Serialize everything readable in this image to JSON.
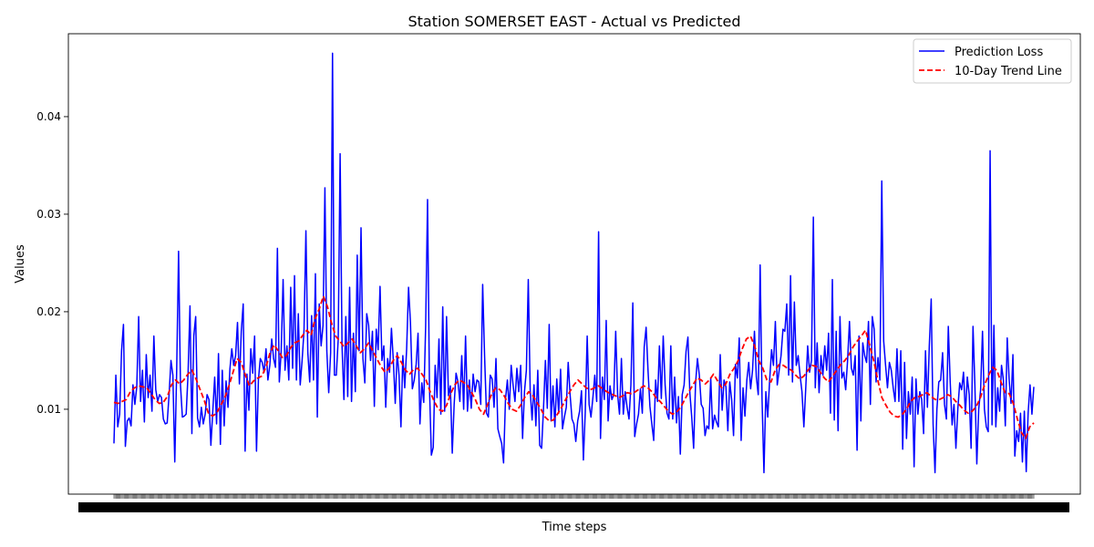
{
  "chart_data": {
    "type": "line",
    "title": "Station SOMERSET EAST - Actual vs Predicted",
    "xlabel": "Time steps",
    "ylabel": "Values",
    "ylim": [
      0.0013,
      0.0485
    ],
    "yticks": [
      "0.01",
      "0.02",
      "0.03",
      "0.04"
    ],
    "ytick_values": [
      0.01,
      0.02,
      0.03,
      0.04
    ],
    "xtick_count": 900,
    "xtick_note": "dense overlapping date tick labels (unreadable)",
    "grid": false,
    "legend_position": "top-right",
    "colors": {
      "loss": "#0000ff",
      "trend": "#ff0000"
    },
    "series": [
      {
        "name": "Prediction Loss",
        "style": "solid",
        "values": [
          0.0065,
          0.0135,
          0.0082,
          0.0095,
          0.016,
          0.0187,
          0.0062,
          0.0088,
          0.0091,
          0.0083,
          0.0125,
          0.0105,
          0.0123,
          0.0195,
          0.0108,
          0.014,
          0.0087,
          0.0156,
          0.0112,
          0.0135,
          0.0098,
          0.0175,
          0.012,
          0.0108,
          0.0115,
          0.0112,
          0.009,
          0.0085,
          0.0086,
          0.0115,
          0.015,
          0.0135,
          0.0046,
          0.014,
          0.0262,
          0.0125,
          0.0092,
          0.0093,
          0.0095,
          0.0137,
          0.0206,
          0.0075,
          0.0175,
          0.0195,
          0.0091,
          0.0082,
          0.0102,
          0.0085,
          0.0095,
          0.0115,
          0.011,
          0.0063,
          0.0098,
          0.0133,
          0.0085,
          0.0157,
          0.0064,
          0.014,
          0.0083,
          0.0129,
          0.0102,
          0.0141,
          0.0162,
          0.0145,
          0.0155,
          0.0189,
          0.0126,
          0.018,
          0.0208,
          0.0057,
          0.0136,
          0.0099,
          0.0162,
          0.0137,
          0.0175,
          0.0057,
          0.013,
          0.0152,
          0.0148,
          0.0138,
          0.0162,
          0.013,
          0.0145,
          0.0172,
          0.0152,
          0.0143,
          0.0265,
          0.0128,
          0.016,
          0.0233,
          0.014,
          0.0165,
          0.013,
          0.0225,
          0.0142,
          0.0237,
          0.013,
          0.0198,
          0.0125,
          0.015,
          0.0181,
          0.0283,
          0.0158,
          0.0128,
          0.0196,
          0.013,
          0.0239,
          0.0092,
          0.0208,
          0.0165,
          0.0186,
          0.0327,
          0.016,
          0.0117,
          0.0158,
          0.0465,
          0.0135,
          0.0135,
          0.0172,
          0.0362,
          0.0165,
          0.011,
          0.0195,
          0.0113,
          0.0225,
          0.0108,
          0.0178,
          0.0118,
          0.0258,
          0.016,
          0.0286,
          0.0152,
          0.0127,
          0.0198,
          0.0186,
          0.015,
          0.018,
          0.0103,
          0.0182,
          0.0161,
          0.0226,
          0.015,
          0.0165,
          0.0102,
          0.0152,
          0.0138,
          0.0183,
          0.015,
          0.0106,
          0.0158,
          0.0135,
          0.0082,
          0.0155,
          0.0122,
          0.0162,
          0.0225,
          0.0189,
          0.0121,
          0.013,
          0.0146,
          0.0178,
          0.0085,
          0.0127,
          0.0107,
          0.0185,
          0.0315,
          0.0124,
          0.0053,
          0.0061,
          0.0145,
          0.0112,
          0.0172,
          0.0095,
          0.0205,
          0.0098,
          0.0195,
          0.0114,
          0.0124,
          0.0055,
          0.0105,
          0.0137,
          0.0128,
          0.0108,
          0.0155,
          0.01,
          0.0175,
          0.0098,
          0.013,
          0.0101,
          0.0136,
          0.0118,
          0.013,
          0.0128,
          0.0105,
          0.0228,
          0.0155,
          0.0096,
          0.0092,
          0.0135,
          0.0131,
          0.0102,
          0.0152,
          0.008,
          0.0072,
          0.0065,
          0.0045,
          0.011,
          0.013,
          0.01,
          0.0145,
          0.0125,
          0.0108,
          0.0142,
          0.0118,
          0.0145,
          0.007,
          0.0118,
          0.014,
          0.0233,
          0.012,
          0.0089,
          0.0125,
          0.0083,
          0.014,
          0.0063,
          0.006,
          0.01,
          0.015,
          0.0101,
          0.0187,
          0.0088,
          0.0124,
          0.0082,
          0.0131,
          0.0096,
          0.0141,
          0.008,
          0.0092,
          0.0102,
          0.0148,
          0.0115,
          0.009,
          0.0085,
          0.0067,
          0.0088,
          0.0098,
          0.0119,
          0.0048,
          0.0098,
          0.0175,
          0.0105,
          0.0092,
          0.0112,
          0.0135,
          0.0108,
          0.0282,
          0.007,
          0.0133,
          0.011,
          0.0191,
          0.0088,
          0.0124,
          0.011,
          0.0115,
          0.018,
          0.0115,
          0.0095,
          0.0152,
          0.0095,
          0.0118,
          0.0102,
          0.009,
          0.0125,
          0.0209,
          0.0072,
          0.0085,
          0.0095,
          0.0121,
          0.0096,
          0.0164,
          0.0184,
          0.014,
          0.0103,
          0.0085,
          0.0068,
          0.013,
          0.0108,
          0.0165,
          0.0111,
          0.0175,
          0.0125,
          0.0096,
          0.009,
          0.0165,
          0.009,
          0.0133,
          0.0086,
          0.0113,
          0.0054,
          0.0115,
          0.0125,
          0.0159,
          0.0174,
          0.0117,
          0.0092,
          0.006,
          0.0126,
          0.0152,
          0.0135,
          0.0105,
          0.0101,
          0.0073,
          0.0083,
          0.008,
          0.0132,
          0.008,
          0.0094,
          0.0087,
          0.0082,
          0.0156,
          0.0099,
          0.013,
          0.0123,
          0.0078,
          0.0128,
          0.011,
          0.0073,
          0.0146,
          0.0132,
          0.0173,
          0.0068,
          0.0122,
          0.0093,
          0.013,
          0.0148,
          0.0121,
          0.014,
          0.018,
          0.0133,
          0.0115,
          0.0248,
          0.011,
          0.0035,
          0.0118,
          0.0092,
          0.013,
          0.0161,
          0.0145,
          0.019,
          0.0125,
          0.014,
          0.0155,
          0.0182,
          0.018,
          0.0208,
          0.0135,
          0.0237,
          0.0128,
          0.021,
          0.0145,
          0.0155,
          0.0135,
          0.0118,
          0.0082,
          0.0122,
          0.0165,
          0.0138,
          0.015,
          0.0297,
          0.0122,
          0.0168,
          0.0117,
          0.0155,
          0.0135,
          0.0165,
          0.014,
          0.0178,
          0.0096,
          0.0233,
          0.0089,
          0.018,
          0.0078,
          0.0195,
          0.0132,
          0.0138,
          0.012,
          0.015,
          0.019,
          0.0142,
          0.0135,
          0.0155,
          0.0058,
          0.0175,
          0.0088,
          0.0168,
          0.0155,
          0.0148,
          0.019,
          0.0105,
          0.0195,
          0.0182,
          0.0128,
          0.0153,
          0.013,
          0.0334,
          0.017,
          0.0145,
          0.0122,
          0.0148,
          0.014,
          0.0122,
          0.0108,
          0.0162,
          0.0108,
          0.016,
          0.0059,
          0.0148,
          0.007,
          0.0118,
          0.0095,
          0.0133,
          0.0041,
          0.0131,
          0.0095,
          0.0118,
          0.011,
          0.0075,
          0.016,
          0.0102,
          0.0165,
          0.0213,
          0.0085,
          0.0035,
          0.01,
          0.0128,
          0.013,
          0.0158,
          0.0105,
          0.009,
          0.0185,
          0.0128,
          0.0084,
          0.0105,
          0.006,
          0.01,
          0.0127,
          0.012,
          0.0138,
          0.0095,
          0.0133,
          0.0115,
          0.006,
          0.0185,
          0.0124,
          0.0044,
          0.01,
          0.012,
          0.018,
          0.01,
          0.0082,
          0.0077,
          0.0365,
          0.0084,
          0.0186,
          0.0082,
          0.0122,
          0.0098,
          0.0145,
          0.013,
          0.0083,
          0.0173,
          0.0131,
          0.0106,
          0.0156,
          0.0052,
          0.0078,
          0.0067,
          0.0096,
          0.0046,
          0.0098,
          0.0036,
          0.0096,
          0.0125,
          0.0095,
          0.0123
        ]
      },
      {
        "name": "10-Day Trend Line",
        "style": "dashed",
        "values": [
          0.0107,
          0.0106,
          0.0108,
          0.011,
          0.0118,
          0.0122,
          0.0124,
          0.0123,
          0.0122,
          0.0116,
          0.011,
          0.0106,
          0.0107,
          0.0113,
          0.0125,
          0.013,
          0.0126,
          0.013,
          0.0136,
          0.014,
          0.0131,
          0.012,
          0.0109,
          0.0096,
          0.0093,
          0.0096,
          0.0104,
          0.0112,
          0.0124,
          0.0138,
          0.0152,
          0.0148,
          0.0135,
          0.0124,
          0.0129,
          0.0132,
          0.0134,
          0.0143,
          0.0158,
          0.0166,
          0.016,
          0.0153,
          0.0155,
          0.0163,
          0.0168,
          0.017,
          0.0176,
          0.0181,
          0.0176,
          0.0193,
          0.0203,
          0.0216,
          0.0205,
          0.0188,
          0.0175,
          0.017,
          0.0164,
          0.0168,
          0.0172,
          0.0165,
          0.0158,
          0.0162,
          0.0168,
          0.016,
          0.0152,
          0.0144,
          0.0138,
          0.0142,
          0.015,
          0.0155,
          0.0148,
          0.014,
          0.0136,
          0.0141,
          0.0142,
          0.0136,
          0.013,
          0.0118,
          0.0108,
          0.01,
          0.0098,
          0.0104,
          0.0116,
          0.0125,
          0.013,
          0.0128,
          0.0125,
          0.0118,
          0.011,
          0.01,
          0.0095,
          0.0105,
          0.0116,
          0.0122,
          0.012,
          0.0114,
          0.0106,
          0.01,
          0.0098,
          0.0104,
          0.0112,
          0.0118,
          0.0114,
          0.0107,
          0.01,
          0.0092,
          0.0088,
          0.0089,
          0.0095,
          0.0102,
          0.011,
          0.0118,
          0.0125,
          0.013,
          0.0126,
          0.0122,
          0.012,
          0.0122,
          0.0124,
          0.0121,
          0.0118,
          0.0116,
          0.0114,
          0.0112,
          0.0114,
          0.0117,
          0.0116,
          0.0118,
          0.0121,
          0.0124,
          0.0122,
          0.0118,
          0.0112,
          0.0108,
          0.0103,
          0.0098,
          0.0095,
          0.0097,
          0.0102,
          0.011,
          0.0118,
          0.0125,
          0.0132,
          0.013,
          0.0126,
          0.013,
          0.0136,
          0.0129,
          0.0122,
          0.0126,
          0.0136,
          0.0142,
          0.015,
          0.0162,
          0.0172,
          0.0175,
          0.0165,
          0.015,
          0.0142,
          0.013,
          0.0128,
          0.014,
          0.0146,
          0.0145,
          0.0142,
          0.014,
          0.0135,
          0.0131,
          0.0134,
          0.014,
          0.0145,
          0.0144,
          0.0138,
          0.0132,
          0.0128,
          0.0134,
          0.014,
          0.0146,
          0.015,
          0.0156,
          0.0164,
          0.017,
          0.0175,
          0.0181,
          0.0166,
          0.015,
          0.013,
          0.0112,
          0.0104,
          0.0097,
          0.0093,
          0.0092,
          0.0095,
          0.01,
          0.0108,
          0.0112,
          0.0113,
          0.0115,
          0.0117,
          0.0113,
          0.011,
          0.011,
          0.0112,
          0.0115,
          0.0113,
          0.0108,
          0.0104,
          0.0099,
          0.0096,
          0.0098,
          0.0103,
          0.0112,
          0.0125,
          0.0135,
          0.0143,
          0.014,
          0.0128,
          0.0117,
          0.0116,
          0.0106,
          0.009,
          0.0076,
          0.007,
          0.0082,
          0.0086
        ]
      }
    ]
  }
}
